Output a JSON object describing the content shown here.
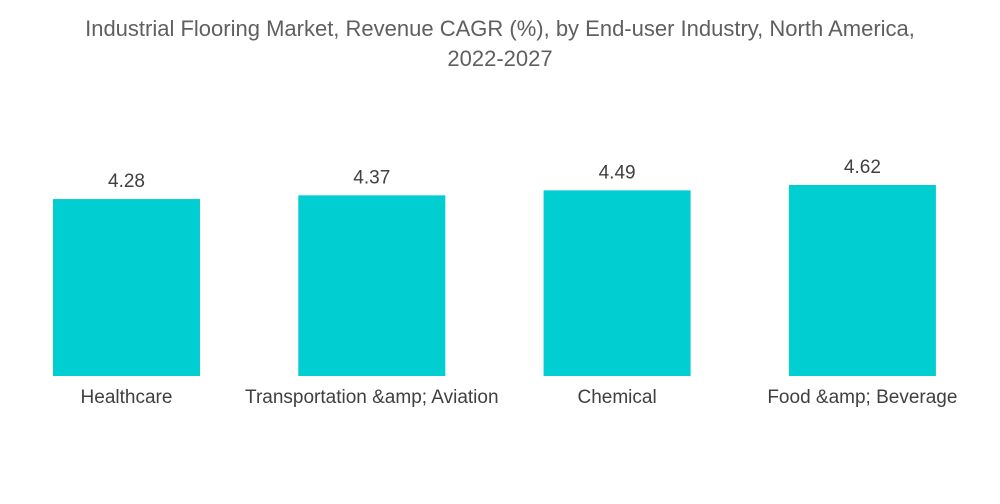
{
  "chart_data": {
    "type": "bar",
    "title": "Industrial Flooring Market, Revenue CAGR (%), by End-user Industry, North America, 2022-2027",
    "title_lines": [
      "Industrial Flooring Market, Revenue CAGR (%), by End-user Industry, North America,",
      "2022-2027"
    ],
    "categories": [
      "Healthcare",
      "Transportation &amp; Aviation",
      "Chemical",
      "Food &amp; Beverage"
    ],
    "values": [
      4.28,
      4.37,
      4.49,
      4.62
    ],
    "value_labels": [
      "4.28",
      "4.37",
      "4.49",
      "4.62"
    ],
    "xlabel": "",
    "ylabel": "",
    "ylim": [
      0,
      4.62
    ],
    "grid": false,
    "legend": "none",
    "bar_color": "#00CED1"
  }
}
